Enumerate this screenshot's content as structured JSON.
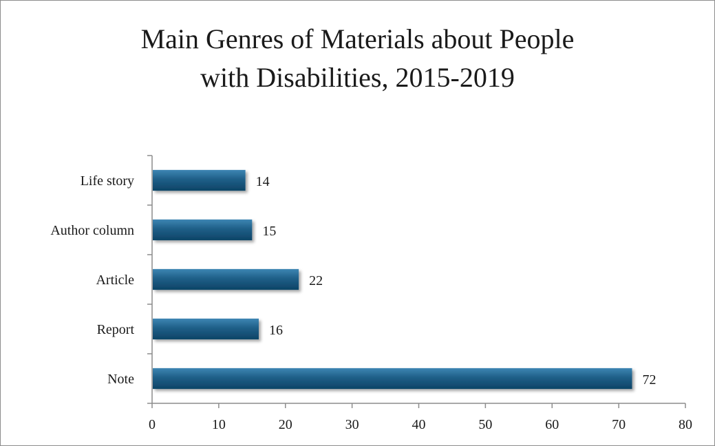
{
  "chart_data": {
    "type": "bar",
    "orientation": "horizontal",
    "title_line1": "Main Genres of Materials about People",
    "title_line2": "with Disabilities, 2015-2019",
    "categories": [
      "Life story",
      "Author column",
      "Article",
      "Report",
      "Note"
    ],
    "values": [
      14,
      15,
      22,
      16,
      72
    ],
    "xlim": [
      0,
      80
    ],
    "xticks": [
      "0",
      "10",
      "20",
      "30",
      "40",
      "50",
      "60",
      "70",
      "80"
    ],
    "xlabel": "",
    "ylabel": "",
    "grid": false,
    "legend": "none",
    "data_labels": true,
    "bar_color": "#1f5f88",
    "bar_color_dark": "#0d4466"
  }
}
